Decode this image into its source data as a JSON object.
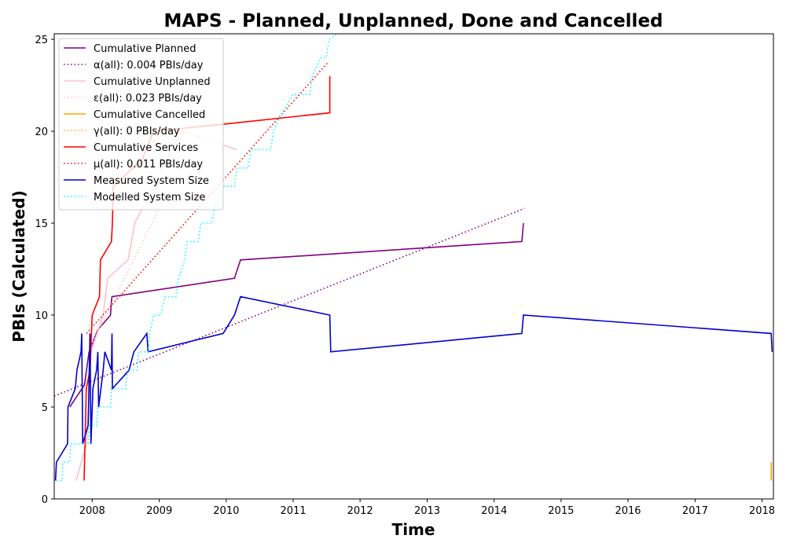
{
  "chart_data": {
    "type": "line",
    "title": "MAPS - Planned, Unplanned, Done  and Cancelled",
    "xlabel": "Time",
    "ylabel": "PBIs (Calculated)",
    "xlim": [
      "2007-06-08",
      "2018-03-04"
    ],
    "ylim": [
      0,
      25.3
    ],
    "x_ticks": [
      "2008",
      "2009",
      "2010",
      "2011",
      "2012",
      "2013",
      "2014",
      "2015",
      "2016",
      "2017",
      "2018"
    ],
    "y_ticks": [
      0,
      5,
      10,
      15,
      20,
      25
    ],
    "grid": false,
    "legend_position": "upper-left",
    "series": [
      {
        "name": "Cumulative Planned",
        "color": "#800080",
        "style": "solid",
        "points": [
          [
            "2007-09-01",
            5
          ],
          [
            "2007-11-20",
            6.2
          ],
          [
            "2007-12-15",
            8
          ],
          [
            "2008-02-01",
            9.2
          ],
          [
            "2008-04-10",
            10
          ],
          [
            "2008-04-15",
            10.8
          ],
          [
            "2008-04-18",
            11
          ],
          [
            "2010-02-15",
            12
          ],
          [
            "2010-03-20",
            13
          ],
          [
            "2014-06-01",
            14
          ],
          [
            "2014-06-10",
            15
          ]
        ]
      },
      {
        "name": "α(all): 0.004 PBIs/day",
        "color": "#800080",
        "style": "dotted",
        "points": [
          [
            "2007-06-08",
            5.6
          ],
          [
            "2014-06-15",
            15.8
          ]
        ]
      },
      {
        "name": "Cumulative Unplanned",
        "color": "#ffc0cb",
        "style": "solid",
        "points": [
          [
            "2007-10-05",
            1
          ],
          [
            "2007-12-01",
            3
          ],
          [
            "2007-12-25",
            8
          ],
          [
            "2008-03-01",
            10
          ],
          [
            "2008-03-25",
            12
          ],
          [
            "2008-07-15",
            13
          ],
          [
            "2008-08-20",
            15
          ],
          [
            "2009-05-01",
            20
          ],
          [
            "2010-03-01",
            19
          ]
        ]
      },
      {
        "name": "ε(all): 0.023 PBIs/day",
        "color": "#ffc0cb",
        "style": "dotted",
        "points": [
          [
            "2007-12-10",
            8
          ],
          [
            "2009-01-20",
            16.2
          ]
        ]
      },
      {
        "name": "Cumulative Cancelled",
        "color": "#ffa500",
        "style": "solid",
        "points": [
          [
            "2018-02-20",
            1
          ],
          [
            "2018-02-20",
            2
          ]
        ]
      },
      {
        "name": "γ(all): 0 PBIs/day",
        "color": "#ffa500",
        "style": "dotted",
        "points": []
      },
      {
        "name": "Cumulative Services",
        "color": "#ff0000",
        "style": "solid",
        "points": [
          [
            "2007-11-18",
            1
          ],
          [
            "2007-11-30",
            6
          ],
          [
            "2007-12-20",
            7
          ],
          [
            "2008-01-01",
            10
          ],
          [
            "2008-02-10",
            11
          ],
          [
            "2008-02-15",
            13
          ],
          [
            "2008-04-15",
            14
          ],
          [
            "2008-04-20",
            15
          ],
          [
            "2008-04-25",
            17
          ],
          [
            "2008-10-01",
            18.5
          ],
          [
            "2008-12-01",
            20
          ],
          [
            "2010-01-01",
            20.4
          ],
          [
            "2011-07-20",
            21
          ],
          [
            "2011-07-20",
            23
          ]
        ]
      },
      {
        "name": "μ(all): 0.011 PBIs/day",
        "color": "#ff0000",
        "style": "dotted",
        "points": [
          [
            "2007-12-01",
            9
          ],
          [
            "2011-07-15",
            23.8
          ]
        ]
      },
      {
        "name": "Measured System Size",
        "color": "#0000cd",
        "style": "solid",
        "points": [
          [
            "2007-06-15",
            1
          ],
          [
            "2007-06-20",
            2
          ],
          [
            "2007-08-20",
            3
          ],
          [
            "2007-08-22",
            5
          ],
          [
            "2007-10-01",
            6
          ],
          [
            "2007-10-10",
            7
          ],
          [
            "2007-11-01",
            8
          ],
          [
            "2007-11-05",
            9
          ],
          [
            "2007-11-10",
            3
          ],
          [
            "2007-12-10",
            4
          ],
          [
            "2007-12-20",
            9
          ],
          [
            "2007-12-25",
            3
          ],
          [
            "2008-01-05",
            6
          ],
          [
            "2008-01-25",
            7
          ],
          [
            "2008-02-01",
            8
          ],
          [
            "2008-02-05",
            5
          ],
          [
            "2008-03-01",
            7
          ],
          [
            "2008-03-10",
            8
          ],
          [
            "2008-04-15",
            7
          ],
          [
            "2008-04-18",
            9
          ],
          [
            "2008-04-20",
            6
          ],
          [
            "2008-07-20",
            7
          ],
          [
            "2008-08-15",
            8
          ],
          [
            "2008-10-25",
            9
          ],
          [
            "2008-11-01",
            8
          ],
          [
            "2009-12-15",
            9
          ],
          [
            "2010-02-15",
            10
          ],
          [
            "2010-03-20",
            11
          ],
          [
            "2011-07-20",
            10
          ],
          [
            "2011-07-25",
            8
          ],
          [
            "2014-06-01",
            9
          ],
          [
            "2014-06-10",
            10
          ],
          [
            "2018-02-20",
            9
          ],
          [
            "2018-02-25",
            8
          ]
        ]
      },
      {
        "name": "Modelled System Size",
        "color": "#00ffff",
        "style": "dotted",
        "points": [
          [
            "2007-06-20",
            1
          ],
          [
            "2007-07-20",
            1
          ],
          [
            "2007-07-25",
            2
          ],
          [
            "2007-09-01",
            2
          ],
          [
            "2007-09-05",
            3
          ],
          [
            "2007-12-10",
            3
          ],
          [
            "2007-12-15",
            4
          ],
          [
            "2008-01-25",
            4
          ],
          [
            "2008-02-01",
            5
          ],
          [
            "2008-04-10",
            5
          ],
          [
            "2008-04-15",
            6
          ],
          [
            "2008-07-01",
            6
          ],
          [
            "2008-07-10",
            7
          ],
          [
            "2008-09-01",
            7
          ],
          [
            "2008-09-10",
            8
          ],
          [
            "2008-11-01",
            8
          ],
          [
            "2008-11-10",
            9
          ],
          [
            "2008-12-01",
            10
          ],
          [
            "2009-01-10",
            10
          ],
          [
            "2009-02-01",
            11
          ],
          [
            "2009-04-01",
            11
          ],
          [
            "2009-04-15",
            12
          ],
          [
            "2009-05-20",
            13
          ],
          [
            "2009-06-01",
            14
          ],
          [
            "2009-08-01",
            14
          ],
          [
            "2009-08-15",
            15
          ],
          [
            "2009-10-15",
            15
          ],
          [
            "2009-11-01",
            16
          ],
          [
            "2009-11-20",
            16
          ],
          [
            "2009-12-01",
            17
          ],
          [
            "2010-02-15",
            17
          ],
          [
            "2010-03-01",
            18
          ],
          [
            "2010-05-01",
            18
          ],
          [
            "2010-05-15",
            19
          ],
          [
            "2010-09-01",
            19
          ],
          [
            "2010-09-15",
            20
          ],
          [
            "2010-11-01",
            21
          ],
          [
            "2011-01-01",
            22
          ],
          [
            "2011-04-01",
            22
          ],
          [
            "2011-04-15",
            23
          ],
          [
            "2011-06-01",
            24
          ],
          [
            "2011-07-01",
            24
          ],
          [
            "2011-07-15",
            25
          ],
          [
            "2011-09-01",
            25.3
          ]
        ]
      }
    ]
  }
}
